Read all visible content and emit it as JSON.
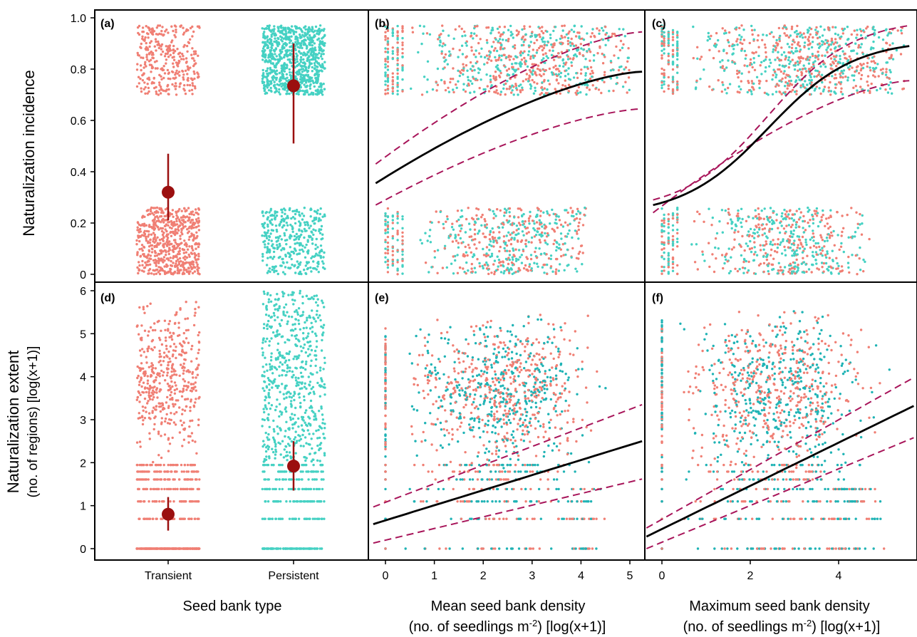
{
  "chart_data": [
    {
      "panel": "a",
      "panel_label": "(a)",
      "type": "scatter",
      "xlabel": "",
      "ylabel": "Naturalization incidence",
      "categories": [
        "Transient",
        "Persistent"
      ],
      "ylim": [
        0,
        1.0
      ],
      "yticks": [
        "0",
        "0.2",
        "0.4",
        "0.6",
        "0.8",
        "1.0"
      ],
      "jitter": {
        "Transient": {
          "zero_band": [
            0,
            0.26
          ],
          "one_band": [
            0.7,
            0.97
          ],
          "n_zero": 620,
          "n_one": 330
        },
        "Persistent": {
          "zero_band": [
            0,
            0.26
          ],
          "one_band": [
            0.7,
            0.97
          ],
          "n_zero": 360,
          "n_one": 860
        }
      },
      "estimates": [
        {
          "category": "Transient",
          "mean": 0.32,
          "lower": 0.21,
          "upper": 0.47
        },
        {
          "category": "Persistent",
          "mean": 0.735,
          "lower": 0.51,
          "upper": 0.9
        }
      ]
    },
    {
      "panel": "b",
      "panel_label": "(b)",
      "type": "scatter",
      "xlabel": "Mean seed bank density",
      "xlabel2": "(no. of seedlings m-2) [log(x+1)]",
      "xlim": [
        -0.25,
        5.25
      ],
      "ylim": [
        0,
        1.0
      ],
      "xticks": [
        "0",
        "1",
        "2",
        "3",
        "4",
        "5"
      ],
      "fit": {
        "x": [
          -0.2,
          5.25
        ],
        "y": [
          0.355,
          0.79
        ]
      },
      "ci_upper": {
        "x": [
          -0.2,
          5.25
        ],
        "y": [
          0.43,
          0.945
        ]
      },
      "ci_lower": {
        "x": [
          -0.2,
          5.25
        ],
        "y": [
          0.27,
          0.645
        ]
      },
      "points_xmax_one": 5.0,
      "points_xmax_zero": 4.1
    },
    {
      "panel": "c",
      "panel_label": "(c)",
      "type": "scatter",
      "xlabel": "Maximum seed bank density",
      "xlabel2": "(no. of seedlings m-2) [log(x+1)]",
      "xlim": [
        -0.35,
        5.7
      ],
      "ylim": [
        0,
        1.0
      ],
      "xticks": [
        "0",
        "2",
        "4"
      ],
      "fit": {
        "x": [
          -0.2,
          5.6
        ],
        "y": [
          0.27,
          0.89
        ]
      },
      "ci_upper": {
        "x": [
          -0.2,
          5.6
        ],
        "y": [
          0.29,
          0.97
        ]
      },
      "ci_lower": {
        "x": [
          -0.2,
          5.6
        ],
        "y": [
          0.24,
          0.755
        ]
      },
      "points_xmax_one": 5.5,
      "points_xmax_zero": 4.7
    },
    {
      "panel": "d",
      "panel_label": "(d)",
      "type": "scatter",
      "xlabel": "Seed bank type",
      "ylabel": "Naturalization extent",
      "ylabel2": "(no. of regions) [log(x+1)]",
      "categories": [
        "Transient",
        "Persistent"
      ],
      "ylim": [
        0,
        6
      ],
      "yticks": [
        "0",
        "1",
        "2",
        "3",
        "4",
        "5",
        "6"
      ],
      "estimates": [
        {
          "category": "Transient",
          "mean": 0.8,
          "lower": 0.42,
          "upper": 1.2
        },
        {
          "category": "Persistent",
          "mean": 1.92,
          "lower": 1.35,
          "upper": 2.5
        }
      ]
    },
    {
      "panel": "e",
      "panel_label": "(e)",
      "type": "scatter",
      "xlim": [
        -0.25,
        5.25
      ],
      "ylim": [
        0,
        6
      ],
      "fit": {
        "x": [
          -0.25,
          5.25
        ],
        "y": [
          0.57,
          2.5
        ]
      },
      "ci_upper": {
        "x": [
          -0.25,
          5.25
        ],
        "y": [
          0.97,
          3.35
        ]
      },
      "ci_lower": {
        "x": [
          -0.25,
          5.25
        ],
        "y": [
          0.13,
          1.62
        ]
      }
    },
    {
      "panel": "f",
      "panel_label": "(f)",
      "type": "scatter",
      "xlim": [
        -0.35,
        5.7
      ],
      "ylim": [
        0,
        6
      ],
      "fit": {
        "x": [
          -0.35,
          5.7
        ],
        "y": [
          0.28,
          3.32
        ]
      },
      "ci_upper": {
        "x": [
          -0.35,
          5.7
        ],
        "y": [
          0.48,
          3.98
        ]
      },
      "ci_lower": {
        "x": [
          -0.35,
          5.7
        ],
        "y": [
          0.0,
          2.58
        ]
      }
    }
  ],
  "colors": {
    "transient": "#f07f74",
    "persistent": "#45d1c3",
    "persistent_dark": "#1fb3b5",
    "estimate": "#9b0f0f",
    "ci": "#a8155a",
    "fit": "#000000"
  }
}
